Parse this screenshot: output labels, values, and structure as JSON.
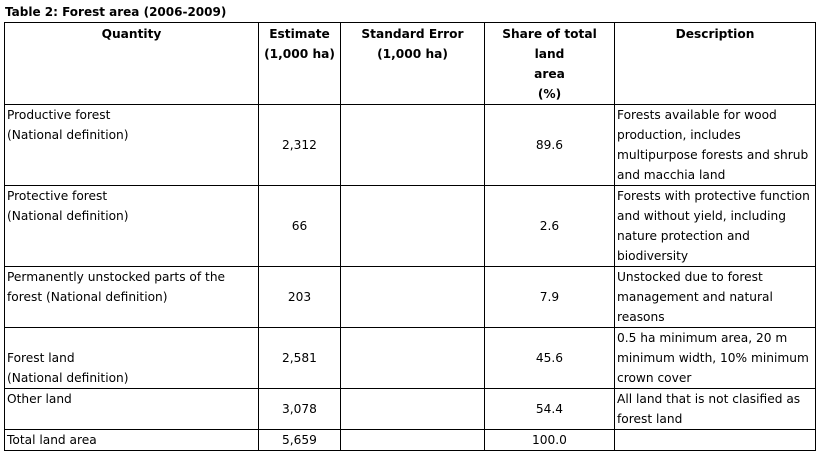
{
  "caption": "Table 2: Forest area (2006-2009)",
  "columns": {
    "quantity": "Quantity",
    "estimate_line1": "Estimate",
    "estimate_line2": "(1,000 ha)",
    "stderr_line1": "Standard Error",
    "stderr_line2": "(1,000 ha)",
    "share_line1": "Share of total land",
    "share_line2": "area",
    "share_line3": "(%)",
    "description": "Description"
  },
  "rows": [
    {
      "quantity_lines": [
        "Productive forest",
        "(National definition)"
      ],
      "estimate": "2,312",
      "std_error": "",
      "share": "89.6",
      "description_lines": [
        "Forests available for wood",
        "production, includes",
        "multipurpose forests and shrub",
        "and macchia land"
      ]
    },
    {
      "quantity_lines": [
        "Protective forest",
        "(National definition)"
      ],
      "estimate": "66",
      "std_error": "",
      "share": "2.6",
      "description_lines": [
        "Forests with protective function",
        "and without yield, including",
        "nature protection and",
        "biodiversity"
      ]
    },
    {
      "quantity_lines": [
        "Permanently unstocked parts of the",
        "forest (National definition)"
      ],
      "estimate": "203",
      "std_error": "",
      "share": "7.9",
      "description_lines": [
        "Unstocked due to forest",
        "management and natural",
        "reasons"
      ]
    },
    {
      "quantity_lines": [
        "Forest land",
        "(National definition)"
      ],
      "estimate": "2,581",
      "std_error": "",
      "share": "45.6",
      "description_lines": [
        "0.5 ha minimum area, 20 m",
        "minimum width, 10% minimum",
        "crown cover"
      ]
    },
    {
      "quantity_lines": [
        "Other land"
      ],
      "estimate": "3,078",
      "std_error": "",
      "share": "54.4",
      "description_lines": [
        "All land that is not clasified as",
        "forest land"
      ]
    },
    {
      "quantity_lines": [
        "Total land area"
      ],
      "estimate": "5,659",
      "std_error": "",
      "share": "100.0",
      "description_lines": []
    }
  ]
}
